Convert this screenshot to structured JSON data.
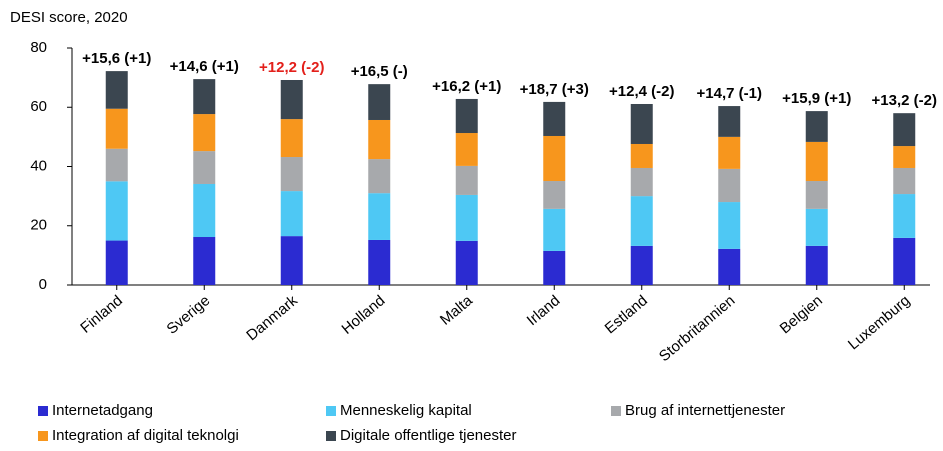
{
  "chart_data": {
    "type": "stacked_bar",
    "y_axis_label": "DESI score, 2020",
    "categories": [
      "Finland",
      "Sverige",
      "Danmark",
      "Holland",
      "Malta",
      "Irland",
      "Estland",
      "Storbritannien",
      "Belgien",
      "Luxemburg"
    ],
    "series": [
      {
        "name": "Internetadgang",
        "color": "#2b2bd1",
        "values": [
          15,
          16.2,
          16.5,
          15.2,
          14.9,
          11.5,
          13.2,
          12.2,
          13.2,
          15.9
        ]
      },
      {
        "name": "Menneskelig kapital",
        "color": "#4ec8f4",
        "values": [
          20,
          17.9,
          15.2,
          15.8,
          15.5,
          14.2,
          16.8,
          15.8,
          12.5,
          14.8
        ]
      },
      {
        "name": "Brug af internettjenester",
        "color": "#a7a9ac",
        "values": [
          11,
          11.1,
          11.5,
          11.5,
          9.8,
          9.4,
          9.5,
          11.2,
          9.4,
          8.8
        ]
      },
      {
        "name": "Integration af digital teknolgi",
        "color": "#f7961d",
        "values": [
          13.5,
          12.5,
          12.8,
          13.2,
          11.1,
          15.2,
          8.1,
          10.8,
          13.2,
          7.4
        ]
      },
      {
        "name": "Digitale offentlige tjenester",
        "color": "#3b4650",
        "values": [
          12.7,
          11.8,
          13.2,
          12.1,
          11.5,
          11.5,
          13.5,
          10.4,
          10.4,
          11.1
        ]
      }
    ],
    "annotations": [
      "+15,6 (+1)",
      "+14,6 (+1)",
      "+12,2 (-2)",
      "+16,5 (-)",
      "+16,2 (+1)",
      "+18,7 (+3)",
      "+12,4 (-2)",
      "+14,7 (-1)",
      "+15,9 (+1)",
      "+13,2 (-2)"
    ],
    "annotation_colors": [
      "#000000",
      "#000000",
      "#e3201b",
      "#000000",
      "#000000",
      "#000000",
      "#000000",
      "#000000",
      "#000000",
      "#000000"
    ],
    "ylim": [
      0,
      80
    ],
    "yticks": [
      0,
      20,
      40,
      60,
      80
    ],
    "grid": false
  }
}
